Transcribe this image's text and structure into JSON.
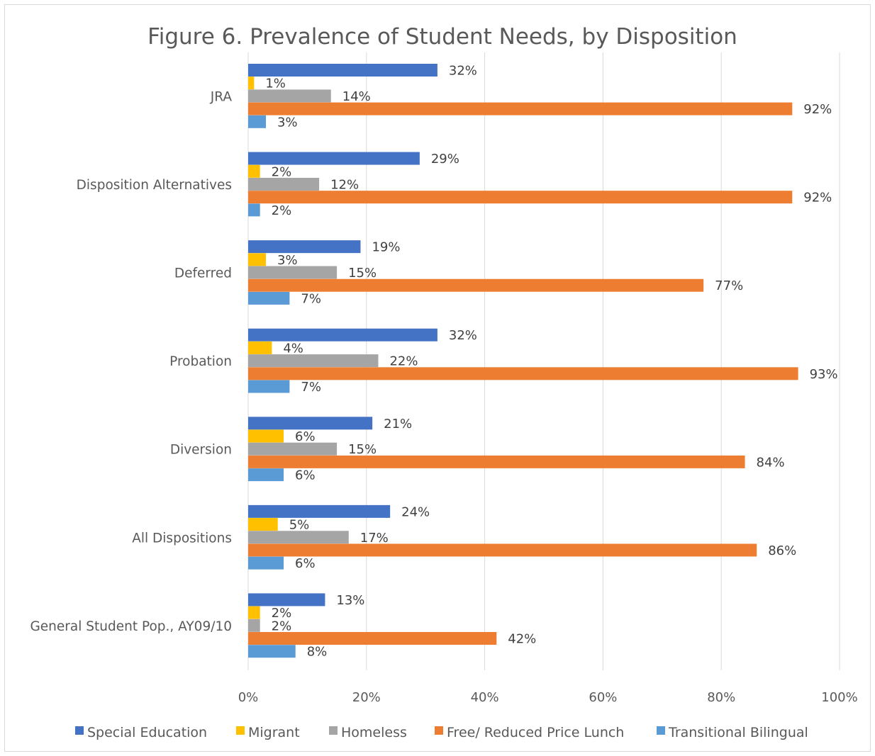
{
  "chart_data": {
    "type": "bar",
    "orientation": "horizontal",
    "title": "Figure 6. Prevalence of Student Needs, by Disposition",
    "categories": [
      "JRA",
      "Disposition Alternatives",
      "Deferred",
      "Probation",
      "Diversion",
      "All Dispositions",
      "General Student Pop., AY09/10"
    ],
    "series": [
      {
        "name": "Special Education",
        "color": "#4472C4",
        "values": [
          32,
          29,
          19,
          32,
          21,
          24,
          13
        ],
        "labels": [
          "32%",
          "29%",
          "19%",
          "32%",
          "21%",
          "24%",
          "13%"
        ]
      },
      {
        "name": "Migrant",
        "color": "#FFC000",
        "values": [
          1,
          2,
          3,
          4,
          6,
          5,
          2
        ],
        "labels": [
          "1%",
          "2%",
          "3%",
          "4%",
          "6%",
          "5%",
          "2%"
        ]
      },
      {
        "name": "Homeless",
        "color": "#A5A5A5",
        "values": [
          14,
          12,
          15,
          22,
          15,
          17,
          2
        ],
        "labels": [
          "14%",
          "12%",
          "15%",
          "22%",
          "15%",
          "17%",
          "2%"
        ]
      },
      {
        "name": "Free/ Reduced Price Lunch",
        "color": "#ED7D31",
        "values": [
          92,
          92,
          77,
          93,
          84,
          86,
          42
        ],
        "labels": [
          "92%",
          "92%",
          "77%",
          "93%",
          "84%",
          "86%",
          "42%"
        ]
      },
      {
        "name": "Transitional Bilingual",
        "color": "#5B9BD5",
        "values": [
          3,
          2,
          7,
          7,
          6,
          6,
          8
        ],
        "labels": [
          "3%",
          "2%",
          "7%",
          "7%",
          "6%",
          "6%",
          "8%"
        ]
      }
    ],
    "xlim": [
      0,
      100
    ],
    "xticks": [
      0,
      20,
      40,
      60,
      80,
      100
    ],
    "xtick_labels": [
      "0%",
      "20%",
      "40%",
      "60%",
      "80%",
      "100%"
    ],
    "grid": "vertical",
    "legend_position": "bottom"
  }
}
